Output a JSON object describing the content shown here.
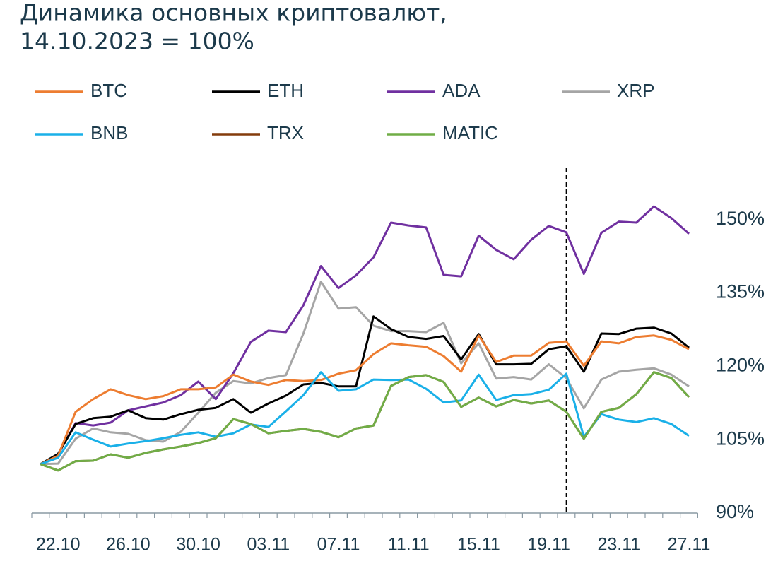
{
  "chart_data": {
    "type": "line",
    "title": [
      "Динамика основных криптовалют,",
      "14.10.2023 = 100%"
    ],
    "categories": [
      null,
      "22.10",
      null,
      null,
      null,
      "26.10",
      null,
      null,
      null,
      "30.10",
      null,
      null,
      null,
      "03.11",
      null,
      null,
      null,
      "07.11",
      null,
      null,
      null,
      "11.11",
      null,
      null,
      null,
      "15.11",
      null,
      null,
      null,
      "19.11",
      null,
      null,
      null,
      "23.11",
      null,
      null,
      null,
      "27.11"
    ],
    "vline_index": 30,
    "ylim": [
      90,
      160
    ],
    "yticks": [
      {
        "value": 90,
        "label": "90%"
      },
      {
        "value": 105,
        "label": "105%"
      },
      {
        "value": 120,
        "label": "120%"
      },
      {
        "value": 135,
        "label": "135%"
      },
      {
        "value": 150,
        "label": "150%"
      }
    ],
    "series": [
      {
        "name": "BTC",
        "color": "#ed7d31",
        "values": [
          100,
          101.7,
          110.7,
          113.3,
          115.3,
          114.1,
          113.3,
          113.9,
          115.3,
          115.3,
          115.7,
          118.3,
          116.9,
          116.2,
          117.2,
          117.0,
          117.2,
          118.5,
          119.2,
          122.5,
          124.7,
          124.3,
          124.0,
          122.1,
          118.9,
          126.3,
          120.9,
          122.2,
          122.2,
          124.8,
          125.1,
          120.1,
          125.1,
          124.7,
          126.0,
          126.3,
          125.4,
          123.5
        ]
      },
      {
        "name": "ETH",
        "color": "#000000",
        "values": [
          100,
          102.1,
          108.2,
          109.4,
          109.7,
          111.0,
          109.4,
          109.1,
          110.2,
          111.1,
          111.5,
          113.3,
          110.5,
          112.4,
          114.0,
          116.3,
          116.6,
          115.9,
          115.9,
          130.2,
          127.6,
          126.0,
          125.6,
          126.2,
          121.4,
          126.6,
          120.4,
          120.4,
          120.5,
          123.5,
          124.1,
          118.9,
          126.7,
          126.6,
          127.7,
          127.9,
          126.7,
          123.8
        ]
      },
      {
        "name": "ADA",
        "color": "#7030a0",
        "values": [
          100,
          102.0,
          108.4,
          107.9,
          108.5,
          111.0,
          111.8,
          112.6,
          114.1,
          116.9,
          113.3,
          118.6,
          125.0,
          127.3,
          127.0,
          132.5,
          140.5,
          136.0,
          138.6,
          142.3,
          149.4,
          148.8,
          148.4,
          138.7,
          138.4,
          146.7,
          143.8,
          141.9,
          145.9,
          148.7,
          147.4,
          138.9,
          147.3,
          149.6,
          149.4,
          152.7,
          150.3,
          147.1
        ]
      },
      {
        "name": "XRP",
        "color": "#a5a5a5",
        "values": [
          100,
          100.1,
          105.2,
          107.3,
          106.5,
          106.2,
          104.9,
          104.6,
          106.6,
          110.5,
          114.6,
          117.0,
          116.5,
          117.6,
          118.2,
          126.7,
          137.3,
          131.8,
          132.1,
          128.3,
          127.2,
          127.2,
          127.0,
          128.9,
          120.6,
          124.7,
          117.5,
          117.8,
          117.3,
          120.4,
          117.6,
          111.4,
          117.3,
          118.9,
          119.3,
          119.6,
          118.3,
          115.9
        ]
      },
      {
        "name": "BNB",
        "color": "#1ab0e8",
        "values": [
          100,
          101.3,
          106.5,
          105.0,
          103.6,
          104.2,
          104.7,
          105.3,
          106.0,
          106.5,
          105.6,
          106.3,
          108.1,
          107.6,
          110.8,
          114.1,
          118.8,
          115.0,
          115.3,
          117.3,
          117.2,
          117.3,
          115.4,
          112.6,
          113.0,
          118.3,
          113.1,
          114.1,
          114.3,
          115.2,
          118.5,
          105.6,
          110.2,
          109.1,
          108.6,
          109.4,
          108.2,
          105.8
        ]
      },
      {
        "name": "TRX",
        "color": "#843c0c",
        "values": [
          100,
          98.7,
          100.6,
          100.7,
          102.0,
          101.3,
          102.3,
          103.0,
          103.6,
          104.3,
          105.3,
          109.2,
          108.2,
          106.3,
          106.8,
          107.2,
          106.6,
          105.5,
          107.3,
          107.9,
          116.0,
          117.8,
          118.2,
          116.8,
          111.7,
          113.6,
          111.8,
          113.1,
          112.4,
          113.0,
          110.7,
          105.2,
          110.7,
          111.5,
          114.3,
          118.8,
          117.6,
          113.7
        ]
      },
      {
        "name": "MATIC",
        "color": "#70ad47",
        "values": [
          100,
          98.7,
          100.6,
          100.7,
          102.0,
          101.3,
          102.3,
          103.0,
          103.6,
          104.3,
          105.3,
          109.2,
          108.2,
          106.3,
          106.8,
          107.2,
          106.6,
          105.5,
          107.3,
          107.9,
          116.0,
          117.8,
          118.2,
          116.8,
          111.7,
          113.6,
          111.8,
          113.1,
          112.4,
          113.0,
          110.7,
          105.2,
          110.7,
          111.5,
          114.3,
          118.8,
          117.6,
          113.7
        ]
      }
    ]
  }
}
